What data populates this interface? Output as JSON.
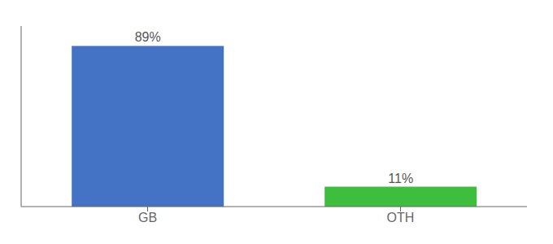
{
  "chart_data": {
    "type": "bar",
    "categories": [
      "GB",
      "OTH"
    ],
    "values": [
      89,
      11
    ],
    "value_labels": [
      "89%",
      "11%"
    ],
    "colors": [
      "#4472c4",
      "#3dbf3d"
    ],
    "ylim": [
      0,
      100
    ],
    "data_labels": true,
    "tick_labels": "x",
    "grid": false
  }
}
